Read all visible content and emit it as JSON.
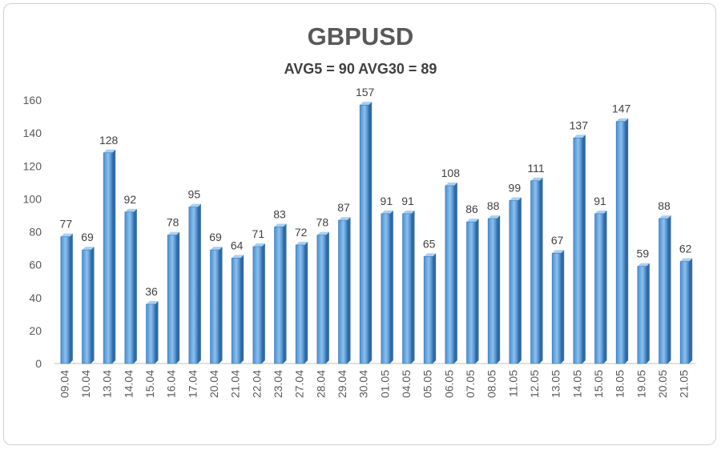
{
  "chart_data": {
    "type": "bar",
    "title": "GBPUSD",
    "subtitle": "AVG5 = 90 AVG30 = 89",
    "xlabel": "",
    "ylabel": "",
    "ylim": [
      0,
      160
    ],
    "yticks": [
      0,
      20,
      40,
      60,
      80,
      100,
      120,
      140,
      160
    ],
    "grid": false,
    "bar_color": "#5b9bd5",
    "categories": [
      "09.04",
      "10.04",
      "13.04",
      "14.04",
      "15.04",
      "16.04",
      "17.04",
      "20.04",
      "21.04",
      "22.04",
      "23.04",
      "27.04",
      "28.04",
      "29.04",
      "30.04",
      "01.05",
      "04.05",
      "05.05",
      "06.05",
      "07.05",
      "08.05",
      "11.05",
      "12.05",
      "13.05",
      "14.05",
      "15.05",
      "18.05",
      "19.05",
      "20.05",
      "21.05"
    ],
    "values": [
      77,
      69,
      128,
      92,
      36,
      78,
      95,
      69,
      64,
      71,
      83,
      72,
      78,
      87,
      157,
      91,
      91,
      65,
      108,
      86,
      88,
      99,
      111,
      67,
      137,
      91,
      147,
      59,
      88,
      62
    ]
  }
}
